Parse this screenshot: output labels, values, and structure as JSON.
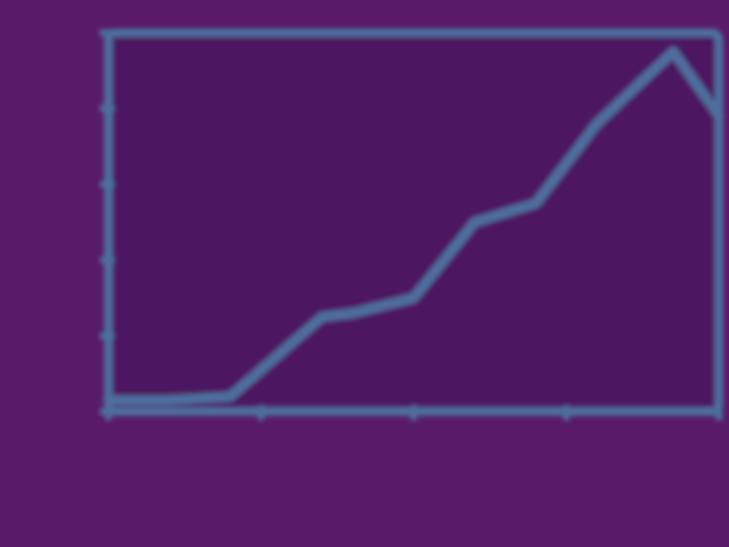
{
  "chart_data": {
    "type": "line",
    "title": "",
    "xlabel": "",
    "ylabel": "",
    "xlim": [
      0,
      200
    ],
    "ylim": [
      0,
      1
    ],
    "xticks": [
      0,
      50,
      100,
      150,
      200
    ],
    "yticks": [
      0,
      0.2,
      0.4,
      0.6,
      0.8,
      1.0
    ],
    "xtick_labels": [
      "",
      "",
      "",
      "",
      ""
    ],
    "ytick_labels": [
      "",
      "",
      "",
      "",
      "",
      ""
    ],
    "grid": false,
    "series": [
      {
        "color": "#4e6e9e",
        "x": [
          0,
          20,
          40,
          70,
          80,
          100,
          120,
          140,
          160,
          185,
          200
        ],
        "y": [
          0.03,
          0.03,
          0.04,
          0.25,
          0.26,
          0.3,
          0.5,
          0.55,
          0.76,
          0.95,
          0.78
        ]
      }
    ],
    "colors": {
      "background": "#591a69",
      "plot_area": "#4e1460",
      "ink": "#4e6e9e"
    }
  }
}
